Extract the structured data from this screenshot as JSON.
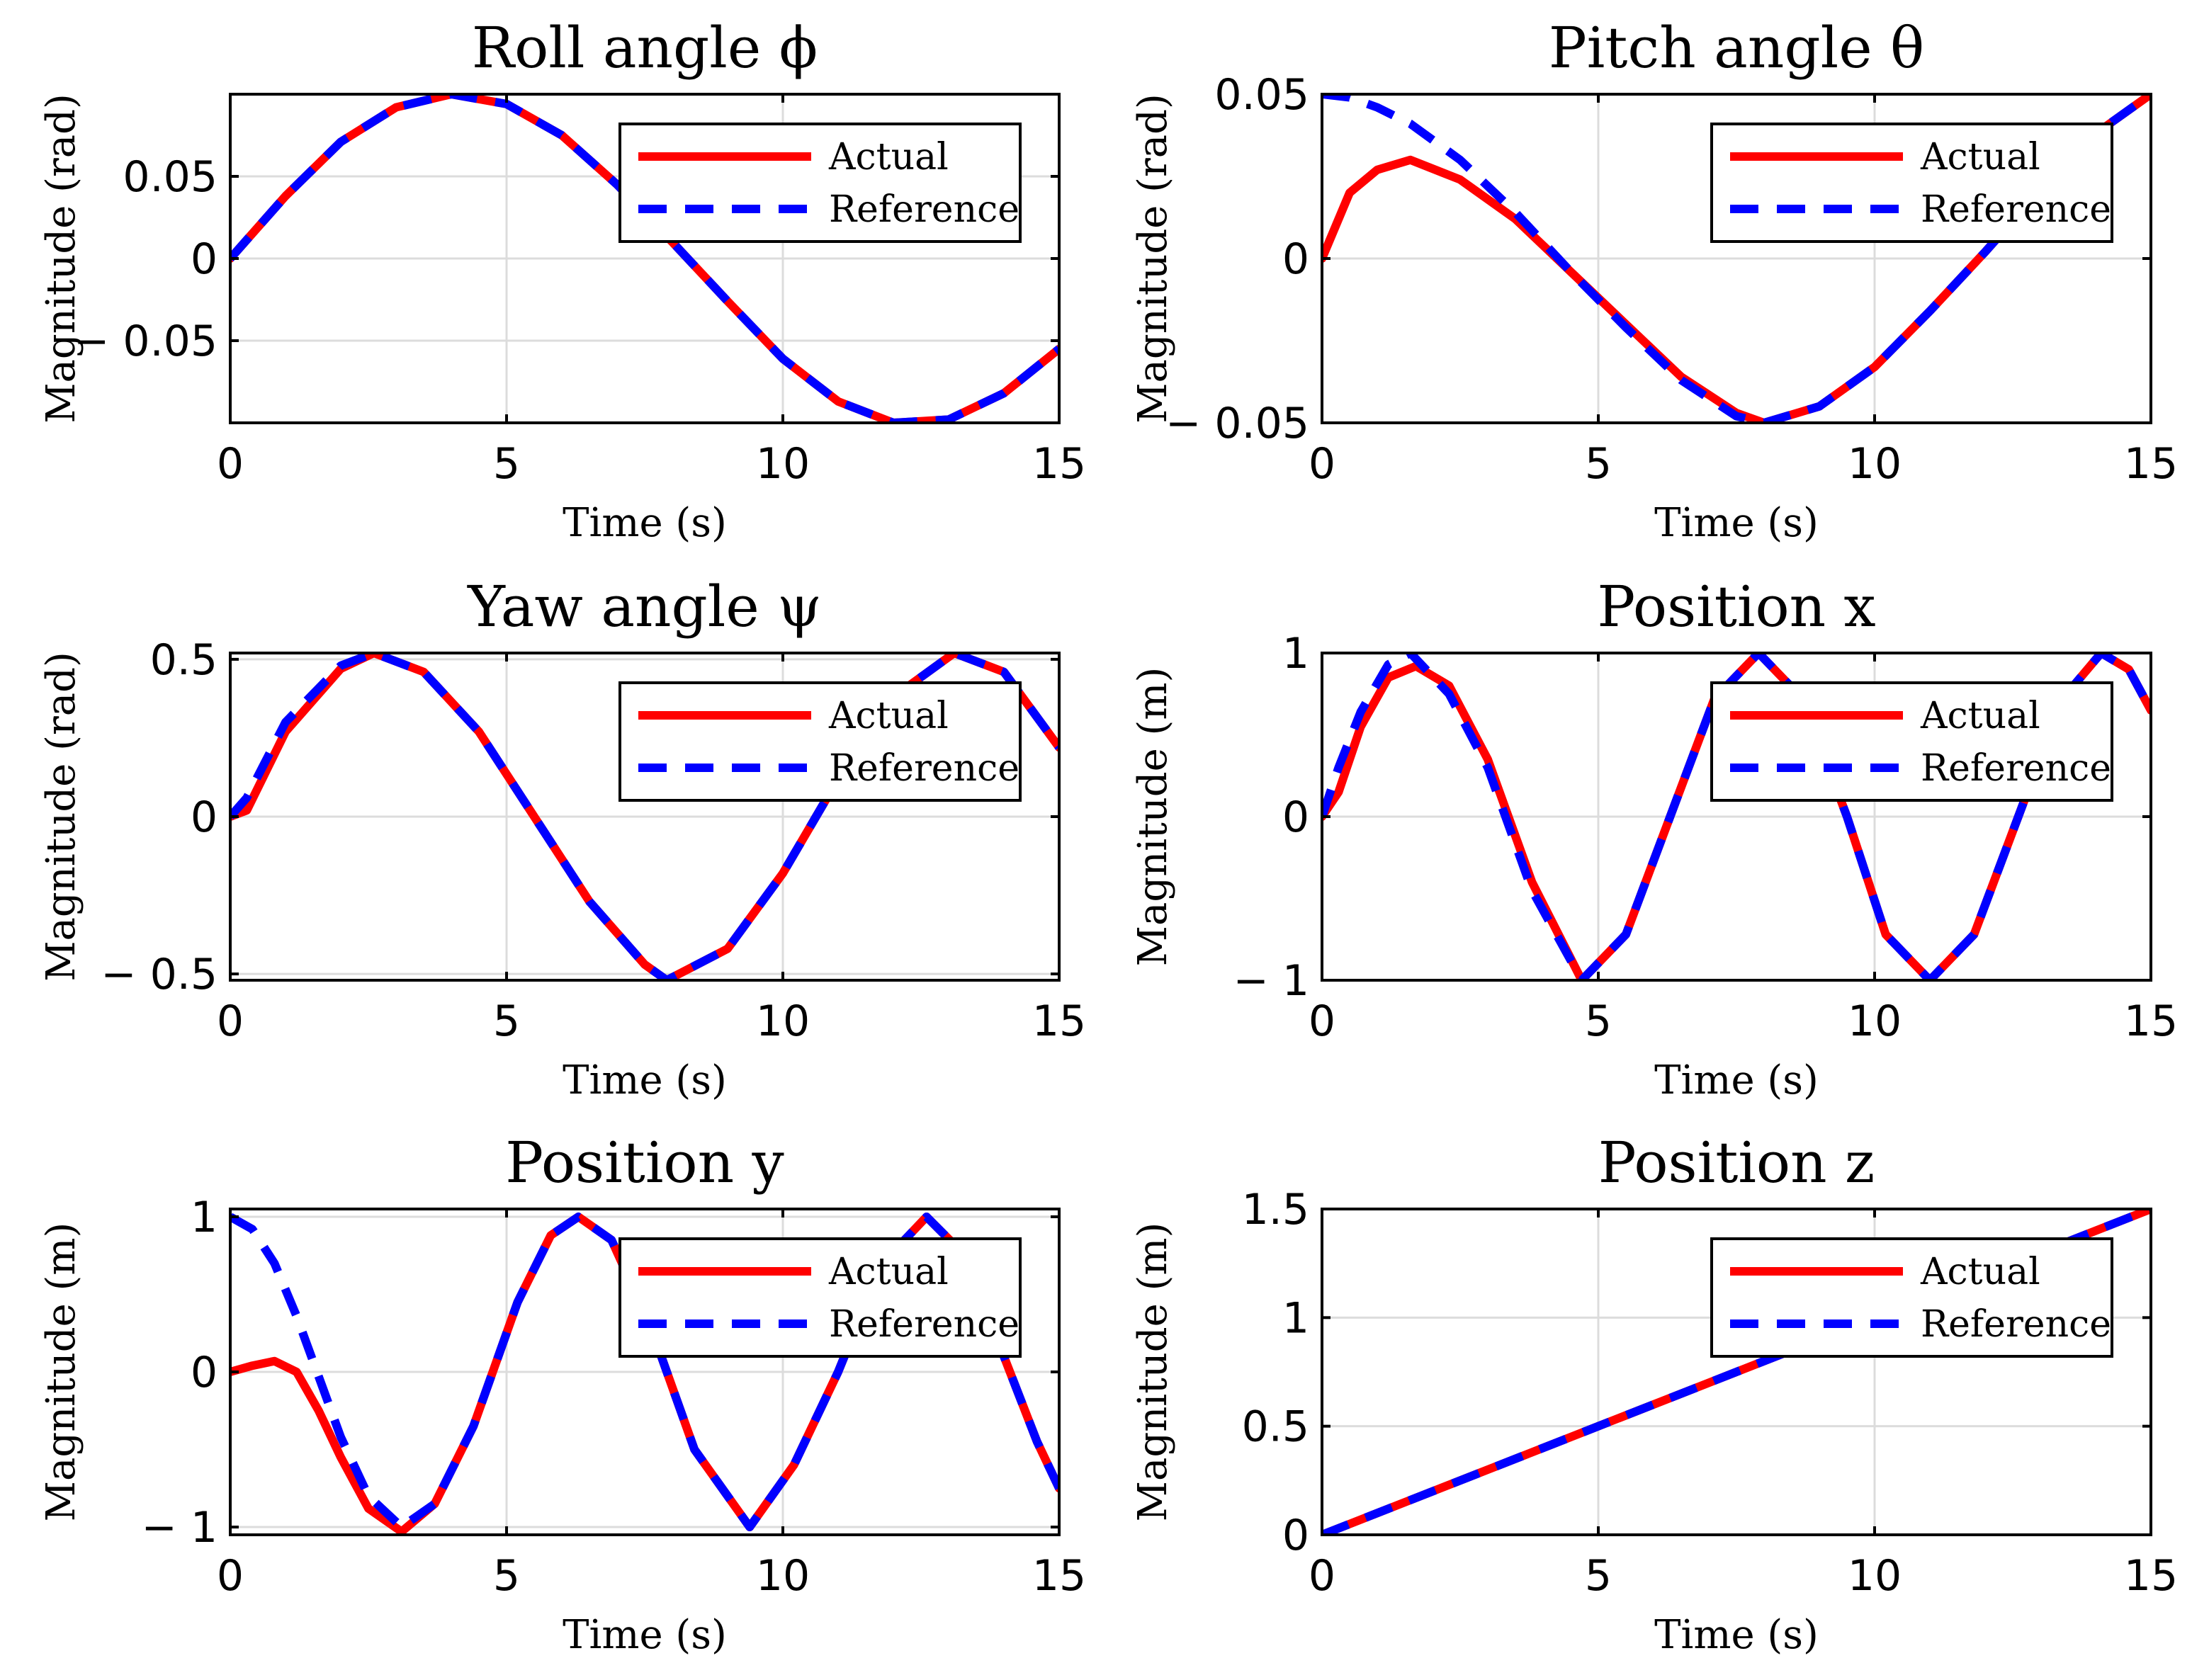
{
  "chart_data": [
    {
      "type": "line",
      "title": "Roll angle ϕ",
      "xlabel": "Time (s)",
      "ylabel": "Magnitude (rad)",
      "xlim": [
        0,
        15
      ],
      "ylim": [
        -0.1,
        0.1
      ],
      "xticks": [
        0,
        5,
        10,
        15
      ],
      "xtick_labels": [
        "0",
        "5",
        "10",
        "15"
      ],
      "yticks": [
        0.05,
        0,
        -0.05
      ],
      "ytick_labels": [
        "0.05",
        "0",
        "− 0.05"
      ],
      "grid": true,
      "legend": {
        "placement": "top-right",
        "entries": [
          "Actual",
          "Reference"
        ]
      },
      "series": [
        {
          "name": "Actual",
          "color": "#ff0000",
          "style": "solid",
          "x": [
            0,
            1,
            2,
            3,
            4,
            5,
            6,
            7,
            8,
            9,
            10,
            11,
            12,
            13,
            14,
            15
          ],
          "y": [
            0,
            0.038,
            0.071,
            0.092,
            0.1,
            0.094,
            0.075,
            0.045,
            0.01,
            -0.026,
            -0.061,
            -0.087,
            -0.1,
            -0.098,
            -0.082,
            -0.055
          ]
        },
        {
          "name": "Reference",
          "color": "#0000ff",
          "style": "dashed",
          "x": [
            0,
            1,
            2,
            3,
            4,
            5,
            6,
            7,
            8,
            9,
            10,
            11,
            12,
            13,
            14,
            15
          ],
          "y": [
            0,
            0.038,
            0.071,
            0.092,
            0.1,
            0.094,
            0.075,
            0.045,
            0.01,
            -0.026,
            -0.061,
            -0.087,
            -0.1,
            -0.098,
            -0.082,
            -0.055
          ]
        }
      ]
    },
    {
      "type": "line",
      "title": "Pitch angle θ",
      "xlabel": "Time (s)",
      "ylabel": "Magnitude (rad)",
      "xlim": [
        0,
        15
      ],
      "ylim": [
        -0.05,
        0.05
      ],
      "xticks": [
        0,
        5,
        10,
        15
      ],
      "xtick_labels": [
        "0",
        "5",
        "10",
        "15"
      ],
      "yticks": [
        0.05,
        0,
        -0.05
      ],
      "ytick_labels": [
        "0.05",
        "0",
        "− 0.05"
      ],
      "grid": true,
      "legend": {
        "placement": "top-right",
        "entries": [
          "Actual",
          "Reference"
        ]
      },
      "series": [
        {
          "name": "Actual",
          "color": "#ff0000",
          "style": "solid",
          "x": [
            0,
            0.5,
            1,
            1.6,
            2.5,
            3.5,
            4.5,
            5.5,
            6.5,
            7.5,
            8,
            9,
            10,
            11,
            12,
            13,
            14,
            15
          ],
          "y": [
            0,
            0.02,
            0.027,
            0.03,
            0.024,
            0.012,
            -0.004,
            -0.02,
            -0.036,
            -0.047,
            -0.05,
            -0.045,
            -0.033,
            -0.016,
            0.002,
            0.021,
            0.038,
            0.05
          ]
        },
        {
          "name": "Reference",
          "color": "#0000ff",
          "style": "dashed",
          "x": [
            0,
            0.5,
            1,
            1.6,
            2.5,
            3.5,
            4.5,
            5.5,
            6.5,
            7.5,
            8,
            9,
            10,
            11,
            12,
            13,
            14,
            15
          ],
          "y": [
            0.05,
            0.049,
            0.046,
            0.041,
            0.03,
            0.014,
            -0.004,
            -0.021,
            -0.037,
            -0.048,
            -0.05,
            -0.045,
            -0.033,
            -0.016,
            0.002,
            0.021,
            0.038,
            0.05
          ]
        }
      ]
    },
    {
      "type": "line",
      "title": "Yaw angle ψ",
      "xlabel": "Time (s)",
      "ylabel": "Magnitude (rad)",
      "xlim": [
        0,
        15
      ],
      "ylim": [
        -0.52,
        0.52
      ],
      "xticks": [
        0,
        5,
        10,
        15
      ],
      "xtick_labels": [
        "0",
        "5",
        "10",
        "15"
      ],
      "yticks": [
        0.5,
        0,
        -0.5
      ],
      "ytick_labels": [
        "0.5",
        "0",
        "− 0.5"
      ],
      "grid": true,
      "legend": {
        "placement": "top-right",
        "entries": [
          "Actual",
          "Reference"
        ]
      },
      "series": [
        {
          "name": "Actual",
          "color": "#ff0000",
          "style": "solid",
          "x": [
            0,
            0.3,
            1,
            2,
            2.6,
            3.5,
            4.5,
            5.5,
            6.5,
            7.5,
            7.9,
            9,
            10,
            11,
            12,
            13.1,
            14,
            15
          ],
          "y": [
            0,
            0.02,
            0.27,
            0.47,
            0.52,
            0.46,
            0.27,
            0.0,
            -0.27,
            -0.47,
            -0.52,
            -0.42,
            -0.18,
            0.12,
            0.38,
            0.52,
            0.46,
            0.22
          ]
        },
        {
          "name": "Reference",
          "color": "#0000ff",
          "style": "dashed",
          "x": [
            0,
            0.3,
            1,
            2,
            2.6,
            3.5,
            4.5,
            5.5,
            6.5,
            7.5,
            7.9,
            9,
            10,
            11,
            12,
            13.1,
            14,
            15
          ],
          "y": [
            0,
            0.06,
            0.3,
            0.48,
            0.52,
            0.46,
            0.27,
            0.0,
            -0.27,
            -0.47,
            -0.52,
            -0.42,
            -0.18,
            0.12,
            0.38,
            0.52,
            0.46,
            0.22
          ]
        }
      ]
    },
    {
      "type": "line",
      "title": "Position x",
      "xlabel": "Time (s)",
      "ylabel": "Magnitude (m)",
      "xlim": [
        0,
        15
      ],
      "ylim": [
        -1,
        1
      ],
      "xticks": [
        0,
        5,
        10,
        15
      ],
      "xtick_labels": [
        "0",
        "5",
        "10",
        "15"
      ],
      "yticks": [
        1,
        0,
        -1
      ],
      "ytick_labels": [
        "1",
        "0",
        "− 1"
      ],
      "grid": true,
      "legend": {
        "placement": "top-right",
        "entries": [
          "Actual",
          "Reference"
        ]
      },
      "series": [
        {
          "name": "Actual",
          "color": "#ff0000",
          "style": "solid",
          "x": [
            0,
            0.3,
            0.7,
            1.2,
            1.7,
            2.3,
            3,
            3.8,
            4.7,
            5.5,
            6.3,
            7.1,
            7.9,
            8.7,
            9.5,
            10.2,
            11,
            11.8,
            12.6,
            13.4,
            14.1,
            14.6,
            15
          ],
          "y": [
            0,
            0.15,
            0.55,
            0.85,
            0.92,
            0.8,
            0.35,
            -0.4,
            -1.0,
            -0.72,
            0.0,
            0.72,
            1.0,
            0.72,
            0.0,
            -0.72,
            -1.0,
            -0.72,
            0.0,
            0.72,
            1.0,
            0.9,
            0.65
          ]
        },
        {
          "name": "Reference",
          "color": "#0000ff",
          "style": "dashed",
          "x": [
            0,
            0.3,
            0.7,
            1.2,
            1.6,
            2.3,
            3,
            3.8,
            4.7,
            5.5,
            6.3,
            7.1,
            7.9,
            8.7,
            9.5,
            10.2,
            11,
            11.8,
            12.6,
            13.4,
            14.1,
            14.6,
            15
          ],
          "y": [
            0,
            0.3,
            0.64,
            0.93,
            1.0,
            0.75,
            0.3,
            -0.45,
            -1.0,
            -0.72,
            0.0,
            0.72,
            1.0,
            0.72,
            0.0,
            -0.72,
            -1.0,
            -0.72,
            0.0,
            0.72,
            1.0,
            0.9,
            0.65
          ]
        }
      ]
    },
    {
      "type": "line",
      "title": "Position y",
      "xlabel": "Time (s)",
      "ylabel": "Magnitude (m)",
      "xlim": [
        0,
        15
      ],
      "ylim": [
        -1.05,
        1.05
      ],
      "xticks": [
        0,
        5,
        10,
        15
      ],
      "xtick_labels": [
        "0",
        "5",
        "10",
        "15"
      ],
      "yticks": [
        1,
        0,
        -1
      ],
      "ytick_labels": [
        "1",
        "0",
        "− 1"
      ],
      "grid": true,
      "legend": {
        "placement": "top-right",
        "entries": [
          "Actual",
          "Reference"
        ]
      },
      "series": [
        {
          "name": "Actual",
          "color": "#ff0000",
          "style": "solid",
          "x": [
            0,
            0.4,
            0.8,
            1.2,
            1.6,
            2,
            2.5,
            3.1,
            3.7,
            4.4,
            5.2,
            5.8,
            6.3,
            6.9,
            7.6,
            8.4,
            9.4,
            10.2,
            11,
            11.8,
            12.6,
            13.3,
            14,
            14.6,
            15
          ],
          "y": [
            0,
            0.04,
            0.07,
            0.0,
            -0.25,
            -0.55,
            -0.88,
            -1.03,
            -0.85,
            -0.35,
            0.45,
            0.88,
            1.0,
            0.85,
            0.3,
            -0.5,
            -1.0,
            -0.6,
            0.0,
            0.7,
            1.0,
            0.75,
            0.1,
            -0.45,
            -0.75
          ]
        },
        {
          "name": "Reference",
          "color": "#0000ff",
          "style": "dashed",
          "x": [
            0,
            0.4,
            0.8,
            1.2,
            1.6,
            2,
            2.5,
            3.1,
            3.7,
            4.4,
            5.2,
            5.8,
            6.3,
            6.9,
            7.6,
            8.4,
            9.4,
            10.2,
            11,
            11.8,
            12.6,
            13.3,
            14,
            14.6,
            15
          ],
          "y": [
            1.0,
            0.92,
            0.7,
            0.36,
            -0.03,
            -0.42,
            -0.8,
            -1.0,
            -0.85,
            -0.35,
            0.45,
            0.88,
            1.0,
            0.85,
            0.3,
            -0.5,
            -1.0,
            -0.6,
            0.0,
            0.7,
            1.0,
            0.75,
            0.1,
            -0.45,
            -0.75
          ]
        }
      ]
    },
    {
      "type": "line",
      "title": "Position z",
      "xlabel": "Time (s)",
      "ylabel": "Magnitude (m)",
      "xlim": [
        0,
        15
      ],
      "ylim": [
        0,
        1.5
      ],
      "xticks": [
        0,
        5,
        10,
        15
      ],
      "xtick_labels": [
        "0",
        "5",
        "10",
        "15"
      ],
      "yticks": [
        1.5,
        1,
        0.5,
        0
      ],
      "ytick_labels": [
        "1.5",
        "1",
        "0.5",
        "0"
      ],
      "grid": true,
      "legend": {
        "placement": "top-right",
        "entries": [
          "Actual",
          "Reference"
        ]
      },
      "series": [
        {
          "name": "Actual",
          "color": "#ff0000",
          "style": "solid",
          "x": [
            0,
            15
          ],
          "y": [
            0,
            1.5
          ]
        },
        {
          "name": "Reference",
          "color": "#0000ff",
          "style": "dashed",
          "x": [
            0,
            15
          ],
          "y": [
            0,
            1.5
          ]
        }
      ]
    }
  ]
}
